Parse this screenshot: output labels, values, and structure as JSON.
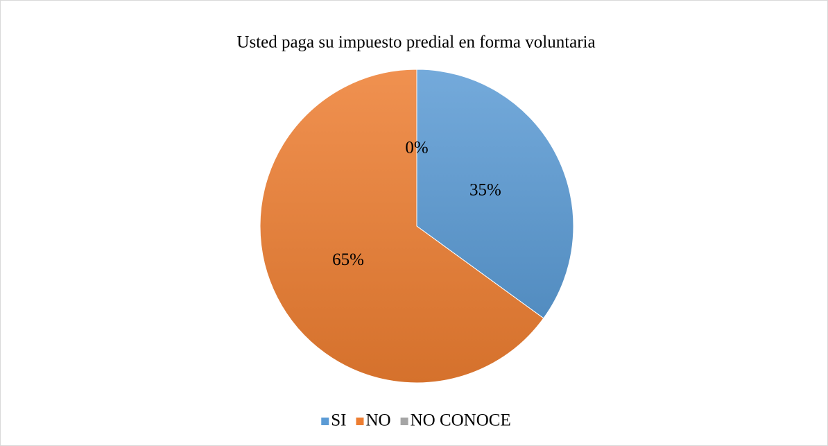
{
  "chart_data": {
    "type": "pie",
    "title": "Usted paga su impuesto predial en forma voluntaria",
    "categories": [
      "SI",
      "NO",
      "NO CONOCE"
    ],
    "values": [
      35,
      65,
      0
    ],
    "value_labels": [
      "35%",
      "65%",
      "0%"
    ],
    "colors": [
      "#5b9bd5",
      "#ed7d31",
      "#a5a5a5"
    ],
    "legend": "bottom"
  }
}
